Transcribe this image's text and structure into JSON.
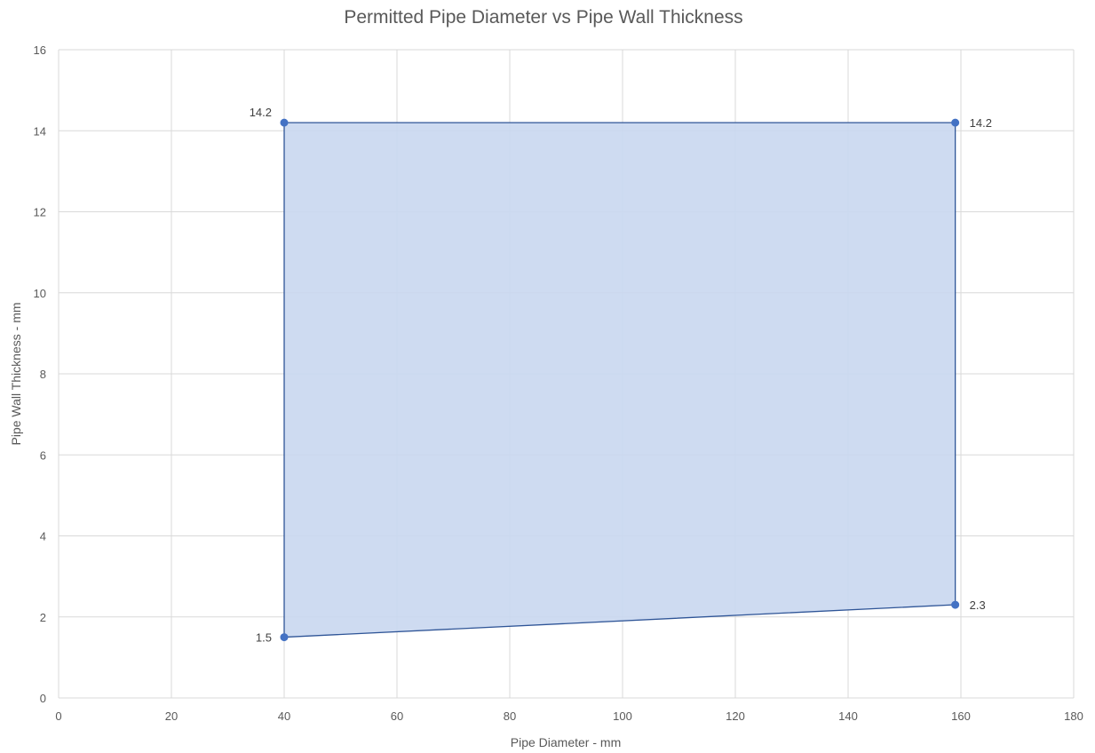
{
  "chart_data": {
    "type": "area",
    "title": "Permitted Pipe Diameter vs Pipe Wall Thickness",
    "xlabel": "Pipe Diameter - mm",
    "ylabel": "Pipe Wall Thickness - mm",
    "xlim": [
      0,
      180
    ],
    "ylim": [
      0,
      16
    ],
    "x_ticks": [
      0,
      20,
      40,
      60,
      80,
      100,
      120,
      140,
      160,
      180
    ],
    "y_ticks": [
      0,
      2,
      4,
      6,
      8,
      10,
      12,
      14,
      16
    ],
    "grid": true,
    "legend": "none",
    "series": [
      {
        "points": [
          {
            "x": 40,
            "y": 1.5,
            "label": "1.5"
          },
          {
            "x": 159,
            "y": 2.3,
            "label": "2.3"
          },
          {
            "x": 159,
            "y": 14.2,
            "label": "14.2"
          },
          {
            "x": 40,
            "y": 14.2,
            "label": "14.2"
          }
        ],
        "fill_color": "#c9d7ef",
        "line_color": "#2f5597",
        "marker_color": "#4472c4"
      }
    ]
  }
}
